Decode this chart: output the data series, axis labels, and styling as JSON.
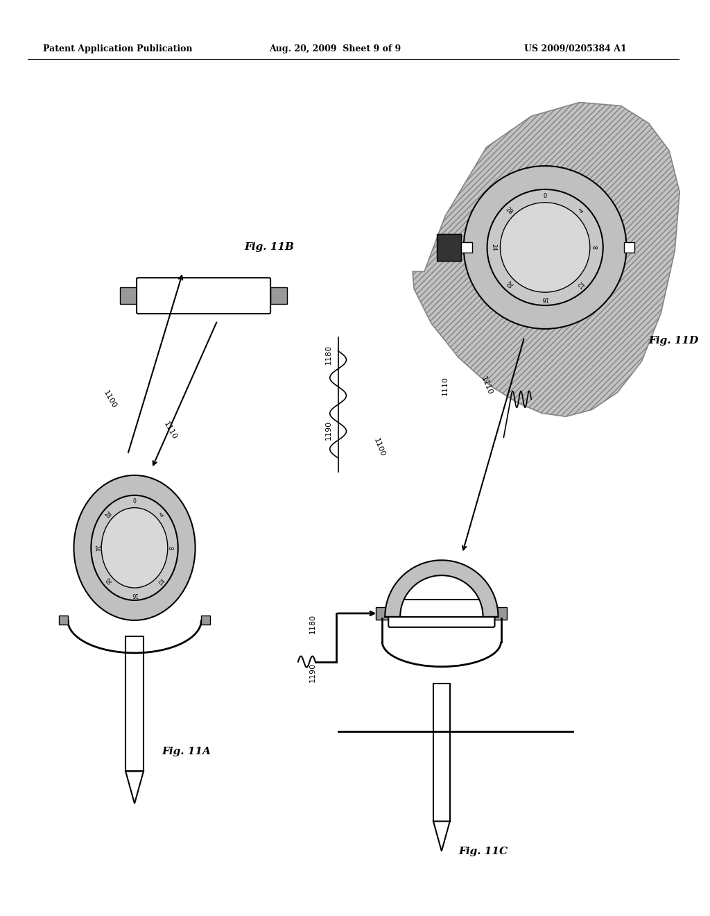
{
  "bg_color": "#ffffff",
  "header_left": "Patent Application Publication",
  "header_center": "Aug. 20, 2009  Sheet 9 of 9",
  "header_right": "US 2009/0205384 A1",
  "fig11a_label": "Fig. 11A",
  "fig11b_label": "Fig. 11B",
  "fig11c_label": "Fig. 11C",
  "fig11d_label": "Fig. 11D",
  "dial_numbers": [
    "0",
    "4",
    "8",
    "12",
    "16",
    "20",
    "24",
    "28"
  ],
  "ref_1100": "1100",
  "ref_1110": "1110",
  "ref_1180": "1180",
  "ref_1190": "1190",
  "hatch_ring": "~",
  "hatch_blob": "/",
  "color_ring": "#c0c0c0",
  "color_dial_bg": "#c8c8c8",
  "color_dial_face": "#d8d8d8",
  "color_blob": "#b8b8b8",
  "color_sq_dark": "#333333",
  "color_sq_light": "#999999"
}
